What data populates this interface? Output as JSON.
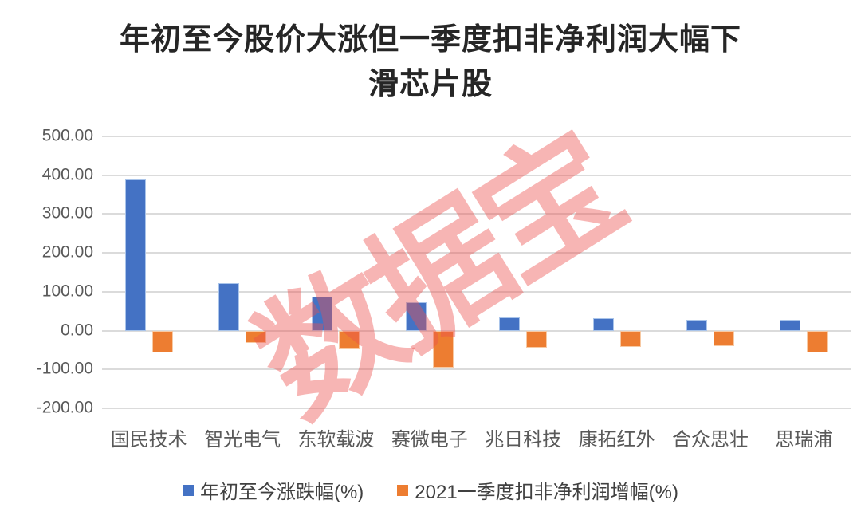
{
  "title": {
    "line1": "年初至今股价大涨但一季度扣非净利润大幅下",
    "line2": "滑芯片股"
  },
  "watermark": {
    "text": "数据宝",
    "color": "rgba(236,78,76,0.42)"
  },
  "colors": {
    "background": "#FFFFFF",
    "title_text": "#262626",
    "axis_text": "#595959",
    "legend_text": "#404040",
    "gridline": "#DBDBDB",
    "blue": "#4472C4",
    "blue_border": "#A9C4EA",
    "orange": "#ED7D31",
    "orange_border": "#F7C9A3"
  },
  "chart_data": {
    "type": "bar",
    "title": "年初至今股价大涨但一季度扣非净利润大幅下滑芯片股",
    "categories": [
      "国民技术",
      "智光电气",
      "东软载波",
      "赛微电子",
      "兆日科技",
      "康拓红外",
      "合众思壮",
      "思瑞浦"
    ],
    "series": [
      {
        "name": "年初至今涨跌幅(%)",
        "color": "#4472C4",
        "border": "#A9C4EA",
        "values": [
          390,
          122,
          87,
          73,
          35,
          31,
          28,
          27
        ]
      },
      {
        "name": "2021一季度扣非净利润增幅(%)",
        "color": "#ED7D31",
        "border": "#F7C9A3",
        "values": [
          -57,
          -31,
          -46,
          -95,
          -43,
          -42,
          -40,
          -57
        ]
      }
    ],
    "xlabel": "",
    "ylabel": "",
    "ylim": [
      -200,
      500
    ],
    "grid": true,
    "legend_position": "bottom",
    "yticks": [
      {
        "value": 500,
        "label": "500.00"
      },
      {
        "value": 400,
        "label": "400.00"
      },
      {
        "value": 300,
        "label": "300.00"
      },
      {
        "value": 200,
        "label": "200.00"
      },
      {
        "value": 100,
        "label": "100.00"
      },
      {
        "value": 0,
        "label": "0.00"
      },
      {
        "value": -100,
        "label": "-100.00"
      },
      {
        "value": -200,
        "label": "-200.00"
      }
    ]
  }
}
